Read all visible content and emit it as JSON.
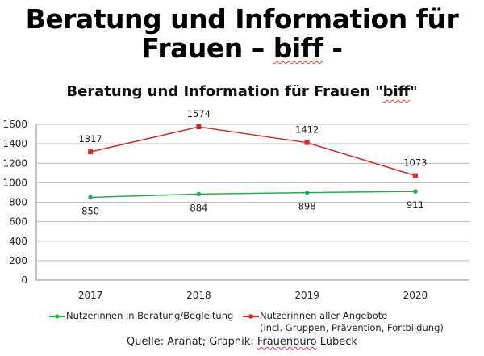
{
  "slide": {
    "title_line1": "Beratung und Information für",
    "title_line2_a": "Frauen – ",
    "title_line2_b": "biff",
    "title_line2_c": " -"
  },
  "chart_data": {
    "type": "line",
    "title_a": "Beratung und Information für Frauen \"",
    "title_b": "biff",
    "title_c": "\"",
    "categories": [
      "2017",
      "2018",
      "2019",
      "2020"
    ],
    "ylim": [
      0,
      1600
    ],
    "yticks": [
      "0",
      "200",
      "400",
      "600",
      "800",
      "1000",
      "1200",
      "1400",
      "1600"
    ],
    "grid": true,
    "legend_position": "bottom",
    "series": [
      {
        "name": "Nutzerinnen in Beratung/Begleitung",
        "name_line2": "",
        "color": "#22b04a",
        "marker": "circle",
        "values": [
          850,
          884,
          898,
          911
        ],
        "label_position": "below"
      },
      {
        "name": "Nutzerinnen aller Angebote",
        "name_line2": "(incl. Gruppen, Prävention, Fortbildung)",
        "color": "#d02a2a",
        "marker": "square",
        "values": [
          1317,
          1574,
          1412,
          1073
        ],
        "label_position": "above"
      }
    ]
  },
  "source": {
    "prefix": "Quelle: Aranat; Graphik: ",
    "author": "Frauenbüro",
    "suffix": " Lübeck"
  }
}
